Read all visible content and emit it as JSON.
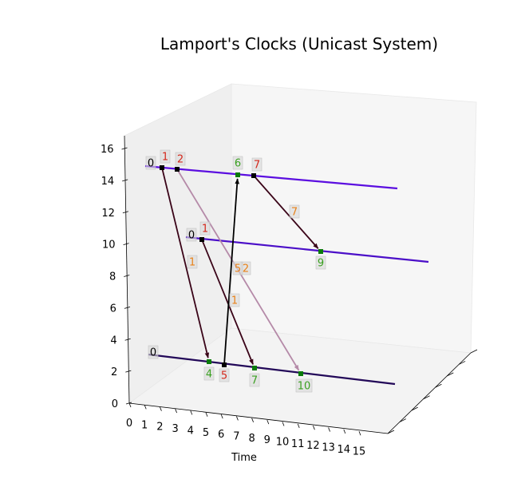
{
  "title": "Lamport's Clocks (Unicast System)",
  "axes": {
    "xlabel": "Time",
    "x_ticks": [
      "0",
      "1",
      "2",
      "3",
      "4",
      "5",
      "6",
      "7",
      "8",
      "9",
      "10",
      "11",
      "12",
      "13",
      "14",
      "15"
    ],
    "z_ticks": [
      "0",
      "2",
      "4",
      "6",
      "8",
      "10",
      "12",
      "14",
      "16"
    ]
  },
  "colors": {
    "send_label": "#d4281c",
    "receive_label": "#3aa021",
    "message_label": "#e8821a",
    "initial_label": "#000000",
    "send_marker": "#000000",
    "receive_marker": "#0a7a0a",
    "process_lines": [
      "#5b0ee0",
      "#4b0fc8",
      "#220858"
    ]
  },
  "chart_data": {
    "type": "3d-line",
    "processes": [
      {
        "initial": "0"
      },
      {
        "initial": "0"
      },
      {
        "initial": "0"
      }
    ],
    "events": [
      {
        "process": 0,
        "time": 1,
        "clock": "1",
        "kind": "send"
      },
      {
        "process": 0,
        "time": 2,
        "clock": "2",
        "kind": "send"
      },
      {
        "process": 0,
        "time": 6,
        "clock": "6",
        "kind": "receive"
      },
      {
        "process": 0,
        "time": 7,
        "clock": "7",
        "kind": "send"
      },
      {
        "process": 1,
        "time": 1,
        "clock": "1",
        "kind": "send"
      },
      {
        "process": 1,
        "time": 9,
        "clock": "9",
        "kind": "receive"
      },
      {
        "process": 2,
        "time": 4,
        "clock": "4",
        "kind": "receive"
      },
      {
        "process": 2,
        "time": 5,
        "clock": "5",
        "kind": "send"
      },
      {
        "process": 2,
        "time": 7,
        "clock": "7",
        "kind": "receive"
      },
      {
        "process": 2,
        "time": 10,
        "clock": "10",
        "kind": "receive"
      }
    ],
    "messages": [
      {
        "from": 0,
        "to": 6,
        "label": "1",
        "color": "#3a0418"
      },
      {
        "from": 1,
        "to": 9,
        "label": "2",
        "color": "#b58aa8"
      },
      {
        "from": 3,
        "to": 5,
        "label": "7",
        "color": "#3a0418"
      },
      {
        "from": 4,
        "to": 8,
        "label": "1",
        "color": "#3a0418"
      },
      {
        "from": 7,
        "to": 2,
        "label": "5",
        "color": "#000000"
      }
    ]
  }
}
